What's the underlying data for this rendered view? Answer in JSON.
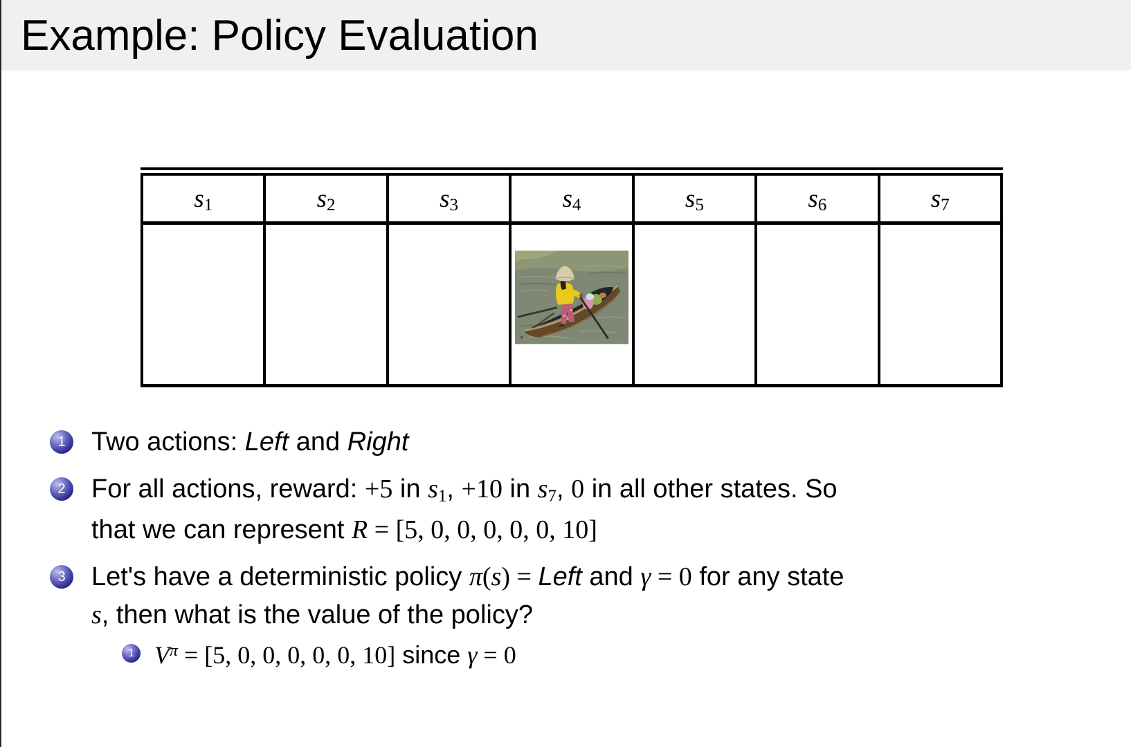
{
  "title": "Example: Policy Evaluation",
  "table": {
    "columns": [
      {
        "base": "s",
        "sub": "1"
      },
      {
        "base": "s",
        "sub": "2"
      },
      {
        "base": "s",
        "sub": "3"
      },
      {
        "base": "s",
        "sub": "4"
      },
      {
        "base": "s",
        "sub": "5"
      },
      {
        "base": "s",
        "sub": "6"
      },
      {
        "base": "s",
        "sub": "7"
      }
    ],
    "image_column": 4,
    "image_description": "person in conical hat rowing a wooden boat on water"
  },
  "bullets": [
    {
      "number": "1",
      "lines": [
        [
          {
            "t": "Two actions: ",
            "s": "p"
          },
          {
            "t": "Left",
            "s": "i"
          },
          {
            "t": " and ",
            "s": "p"
          },
          {
            "t": "Right",
            "s": "i"
          }
        ]
      ],
      "sub_bullets": []
    },
    {
      "number": "2",
      "lines": [
        [
          {
            "t": "For all actions, reward: ",
            "s": "p"
          },
          {
            "t": "+5",
            "s": "n"
          },
          {
            "t": " in ",
            "s": "p"
          },
          {
            "t": "s",
            "s": "m"
          },
          {
            "t": "1",
            "s": "sub"
          },
          {
            "t": ", ",
            "s": "p"
          },
          {
            "t": "+10",
            "s": "n"
          },
          {
            "t": " in ",
            "s": "p"
          },
          {
            "t": "s",
            "s": "m"
          },
          {
            "t": "7",
            "s": "sub"
          },
          {
            "t": ", ",
            "s": "p"
          },
          {
            "t": "0",
            "s": "n"
          },
          {
            "t": " in all other states.  So",
            "s": "p"
          }
        ],
        [
          {
            "t": "that we can represent ",
            "s": "p"
          },
          {
            "t": "R",
            "s": "m"
          },
          {
            "t": " = [5, 0, 0, 0, 0, 0, 10]",
            "s": "n"
          }
        ]
      ],
      "sub_bullets": []
    },
    {
      "number": "3",
      "lines": [
        [
          {
            "t": "Let's have a deterministic policy ",
            "s": "p"
          },
          {
            "t": "π",
            "s": "m"
          },
          {
            "t": "(",
            "s": "n"
          },
          {
            "t": "s",
            "s": "m"
          },
          {
            "t": ") = ",
            "s": "n"
          },
          {
            "t": "Left",
            "s": "i"
          },
          {
            "t": " and ",
            "s": "p"
          },
          {
            "t": "γ",
            "s": "m"
          },
          {
            "t": " = 0",
            "s": "n"
          },
          {
            "t": " for any state",
            "s": "p"
          }
        ],
        [
          {
            "t": "s",
            "s": "m"
          },
          {
            "t": ", then what is the value of the policy?",
            "s": "p"
          }
        ]
      ],
      "sub_bullets": [
        {
          "number": "1",
          "lines": [
            [
              {
                "t": "V",
                "s": "m"
              },
              {
                "t": "π",
                "s": "sup"
              },
              {
                "t": " = [5, 0, 0, 0, 0, 0, 10]",
                "s": "n"
              },
              {
                "t": " since ",
                "s": "p"
              },
              {
                "t": "γ",
                "s": "m"
              },
              {
                "t": " = 0",
                "s": "n"
              }
            ]
          ]
        }
      ]
    }
  ],
  "colors": {
    "title_bar_bg": "#f0f0f0",
    "slide_bg": "#ffffff",
    "bullet_ball_blue": "#2c2c90",
    "text": "#000000",
    "table_border": "#000000"
  }
}
